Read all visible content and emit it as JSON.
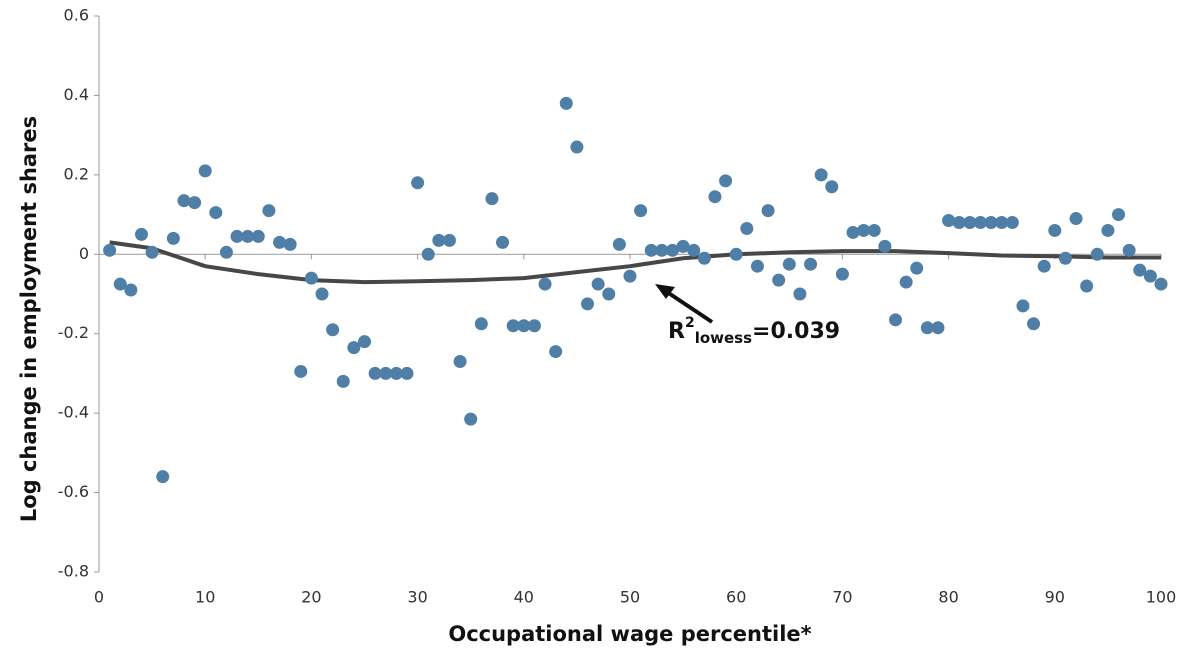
{
  "chart_data": {
    "type": "scatter",
    "xlabel": "Occupational wage percentile*",
    "ylabel": "Log change in employment shares",
    "annotation": [
      "R",
      "2",
      "lowess",
      "=0.039"
    ],
    "xlim": [
      0,
      100
    ],
    "xticks": [
      0,
      10,
      20,
      30,
      40,
      50,
      60,
      70,
      80,
      90,
      100
    ],
    "ylim": [
      -0.8,
      0.6
    ],
    "yticks": [
      0.6,
      0.4,
      0.2,
      0,
      -0.2,
      -0.4,
      -0.6,
      -0.8
    ],
    "points": {
      "color": "#4f7fa6",
      "x": [
        1,
        2,
        3,
        4,
        5,
        6,
        7,
        8,
        9,
        10,
        11,
        12,
        13,
        14,
        15,
        16,
        17,
        18,
        19,
        20,
        21,
        22,
        23,
        24,
        25,
        26,
        27,
        28,
        29,
        30,
        31,
        32,
        33,
        34,
        35,
        36,
        37,
        38,
        39,
        40,
        41,
        42,
        43,
        44,
        45,
        46,
        47,
        48,
        49,
        50,
        51,
        52,
        53,
        54,
        55,
        56,
        57,
        58,
        59,
        60,
        61,
        62,
        63,
        64,
        65,
        66,
        67,
        68,
        69,
        70,
        71,
        72,
        73,
        74,
        75,
        76,
        77,
        78,
        79,
        80,
        81,
        82,
        83,
        84,
        85,
        86,
        87,
        88,
        89,
        90,
        91,
        92,
        93,
        94,
        95,
        96,
        97,
        98,
        99,
        100
      ],
      "y": [
        0.01,
        -0.075,
        -0.09,
        0.05,
        0.005,
        -0.56,
        0.04,
        0.135,
        0.13,
        0.21,
        0.105,
        0.005,
        0.045,
        0.045,
        0.045,
        0.11,
        0.03,
        0.025,
        -0.295,
        -0.06,
        -0.1,
        -0.19,
        -0.32,
        -0.235,
        -0.22,
        -0.3,
        -0.3,
        -0.3,
        -0.3,
        0.18,
        0.0,
        0.035,
        0.035,
        -0.27,
        -0.415,
        -0.175,
        0.14,
        0.03,
        -0.18,
        -0.18,
        -0.18,
        -0.075,
        -0.245,
        0.38,
        0.27,
        -0.125,
        -0.075,
        -0.1,
        0.025,
        -0.055,
        0.11,
        0.01,
        0.01,
        0.01,
        0.02,
        0.01,
        -0.01,
        0.145,
        0.185,
        0,
        0.065,
        -0.03,
        0.11,
        -0.065,
        -0.025,
        -0.1,
        -0.025,
        0.2,
        0.17,
        -0.05,
        0.055,
        0.06,
        0.06,
        0.02,
        -0.165,
        -0.07,
        -0.035,
        -0.185,
        -0.185,
        0.085,
        0.08,
        0.08,
        0.08,
        0.08,
        0.08,
        0.08,
        -0.13,
        -0.175,
        -0.03,
        0.06,
        -0.01,
        0.09,
        -0.08,
        0,
        0.06,
        0.1,
        0.01,
        -0.04,
        -0.055,
        -0.075
      ]
    },
    "lowess": {
      "color": "#474747",
      "x": [
        1,
        5,
        10,
        15,
        20,
        25,
        30,
        35,
        40,
        45,
        50,
        55,
        60,
        65,
        70,
        75,
        80,
        85,
        90,
        95,
        100
      ],
      "y": [
        0.03,
        0.015,
        -0.03,
        -0.05,
        -0.065,
        -0.07,
        -0.068,
        -0.065,
        -0.06,
        -0.045,
        -0.03,
        -0.01,
        0.0,
        0.005,
        0.008,
        0.008,
        0.003,
        -0.003,
        -0.005,
        -0.008,
        -0.008
      ]
    }
  }
}
